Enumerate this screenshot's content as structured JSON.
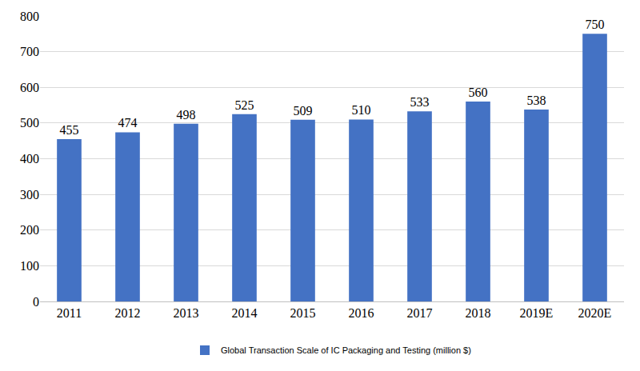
{
  "chart_data": {
    "type": "bar",
    "categories": [
      "2011",
      "2012",
      "2013",
      "2014",
      "2015",
      "2016",
      "2017",
      "2018",
      "2019E",
      "2020E"
    ],
    "series": [
      {
        "name": "Global Transaction Scale of IC Packaging and Testing (million $)",
        "color": "#4472c4",
        "values": [
          455,
          474,
          498,
          525,
          509,
          510,
          533,
          560,
          538,
          750
        ]
      }
    ],
    "ylim": [
      0,
      800
    ],
    "yticks": [
      0,
      100,
      200,
      300,
      400,
      500,
      600,
      700,
      800
    ],
    "grid": true,
    "data_labels": true,
    "legend": "bottom"
  }
}
